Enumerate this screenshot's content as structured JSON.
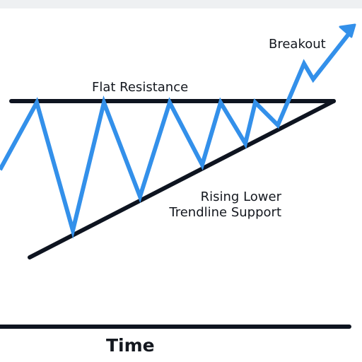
{
  "diagram": {
    "breakout_label": "Breakout",
    "resistance_label": "Flat Resistance",
    "support_label_line1": "Rising Lower",
    "support_label_line2": "Trendline Support",
    "axis_label": "Time",
    "colors": {
      "price_line": "#3390ea",
      "lines": "#0e1420",
      "text": "#14181f",
      "top_bar": "#eef0f2"
    }
  }
}
